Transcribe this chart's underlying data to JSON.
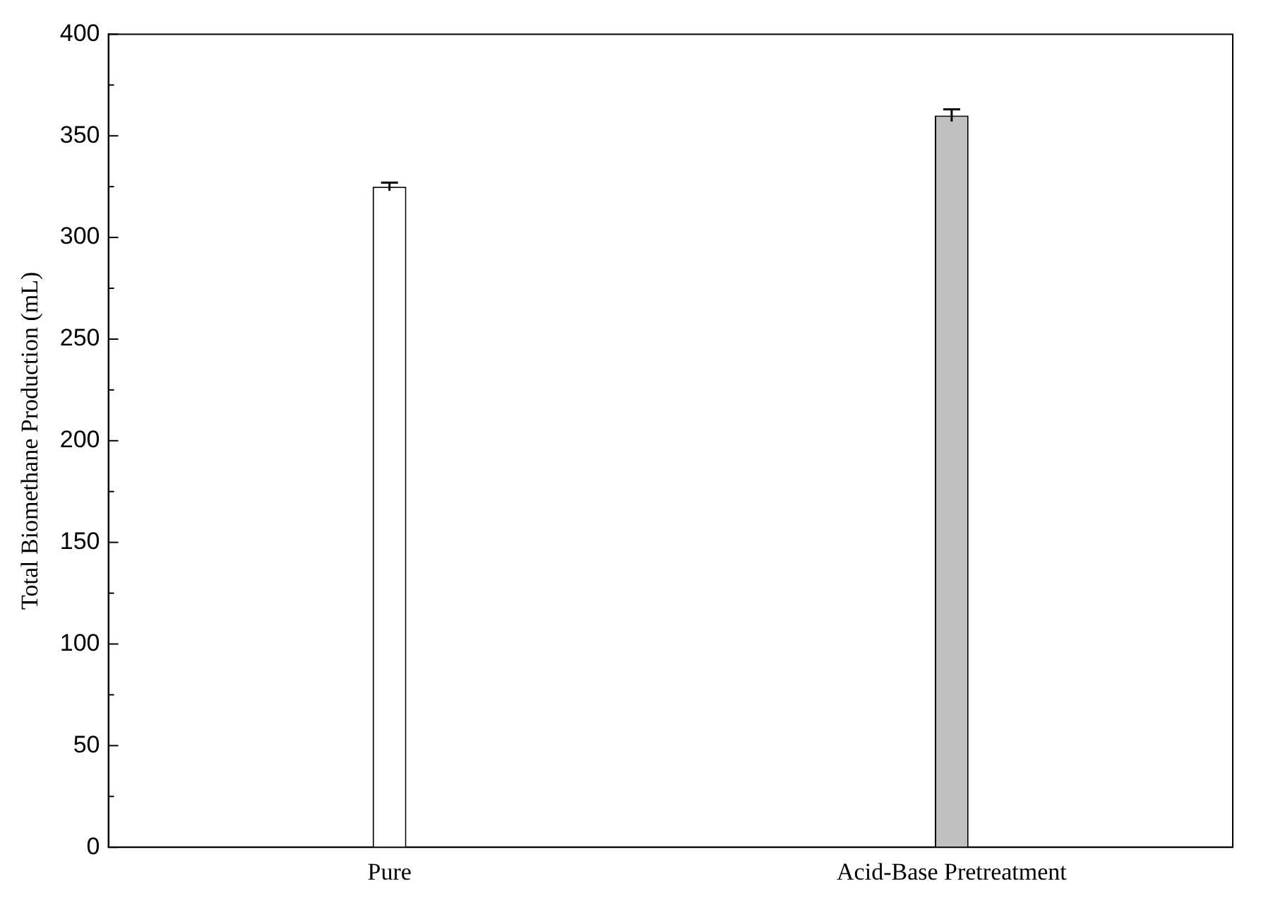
{
  "chart_data": {
    "type": "bar",
    "ylabel": "Total Biomethane Production (mL)",
    "categories": [
      "Pure",
      "Acid-Base Pretreatment"
    ],
    "values": [
      325,
      360
    ],
    "colors": [
      "#ffffff",
      "#c0c0c0"
    ],
    "errors": [
      2,
      3
    ],
    "ylim": [
      0,
      400
    ],
    "yticks": [
      0,
      50,
      100,
      150,
      200,
      250,
      300,
      350,
      400
    ],
    "grid": false,
    "legend": false
  }
}
